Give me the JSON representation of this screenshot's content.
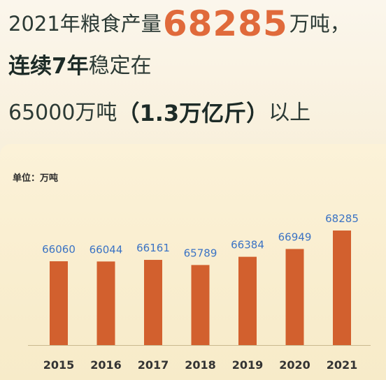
{
  "headline": {
    "line1_prefix": "2021年粮食产量",
    "line1_value": "68285",
    "line1_suffix": "万吨，",
    "line2_bold": "连续7年",
    "line2_rest": "稳定在",
    "line3_prefix": "65000万吨",
    "line3_bold": "（1.3万亿斤）",
    "line3_suffix": "以上"
  },
  "chart_data": {
    "type": "bar",
    "title": "",
    "unit_label": "单位：万吨",
    "xlabel": "",
    "ylabel": "",
    "categories": [
      "2015",
      "2016",
      "2017",
      "2018",
      "2019",
      "2020",
      "2021"
    ],
    "values": [
      66060,
      66044,
      66161,
      65789,
      66384,
      66949,
      68285
    ],
    "data_labels": [
      "66060",
      "66044",
      "66161",
      "65789",
      "66384",
      "66949",
      "68285"
    ],
    "bar_color": "#d2602e",
    "label_color": "#3b73c4",
    "tick_color": "#333333",
    "grid": false
  }
}
